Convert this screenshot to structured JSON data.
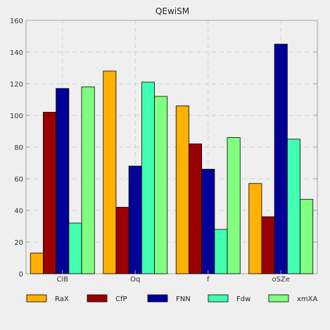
{
  "chart_data": {
    "type": "bar",
    "title": "QEwiSM",
    "xlabel": "",
    "ylabel": "",
    "categories": [
      "ClB",
      "Oq",
      "f",
      "oSZe"
    ],
    "series": [
      {
        "name": "RaX",
        "color": "#ffb000",
        "values": [
          13,
          128,
          106,
          57
        ]
      },
      {
        "name": "CfP",
        "color": "#990000",
        "values": [
          102,
          42,
          82,
          36
        ]
      },
      {
        "name": "FNN",
        "color": "#000099",
        "values": [
          117,
          68,
          66,
          145
        ]
      },
      {
        "name": "Fdw",
        "color": "#40ffb0",
        "values": [
          32,
          121,
          28,
          85
        ]
      },
      {
        "name": "xmXA",
        "color": "#80ff80",
        "values": [
          118,
          112,
          86,
          47
        ]
      }
    ],
    "ylim": [
      0,
      160
    ],
    "yticks": [
      0,
      20,
      40,
      60,
      80,
      100,
      120,
      140,
      160
    ],
    "grid": true,
    "legend_position": "bottom"
  }
}
